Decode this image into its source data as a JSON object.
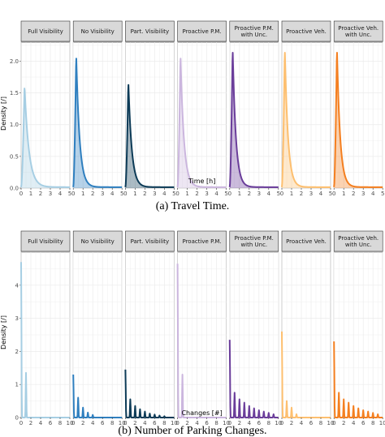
{
  "chart_data": [
    {
      "type": "area",
      "subplot": "a",
      "caption": "(a)   Travel Time.",
      "xlabel": "Time [h]",
      "ylabel": "Density [/]",
      "xlim": [
        0,
        5
      ],
      "ylim": [
        0,
        2.3
      ],
      "xticks": [
        0,
        1,
        2,
        3,
        4,
        5
      ],
      "yticks": [
        0.0,
        0.5,
        1.0,
        1.5,
        2.0
      ],
      "ytick_labels": [
        "0.0",
        "0.5",
        "1.0",
        "1.5",
        "2.0"
      ],
      "grid": true,
      "panels": [
        {
          "label": "Full Visibility",
          "color": "#a6cee3",
          "peak_x": 0.35,
          "peak": 1.6,
          "decay": 0.45
        },
        {
          "label": "No Visibility",
          "color": "#2f7fbf",
          "peak_x": 0.3,
          "peak": 2.1,
          "decay": 0.35
        },
        {
          "label": "Part. Visibility",
          "color": "#0d3b57",
          "peak_x": 0.3,
          "peak": 1.67,
          "decay": 0.35
        },
        {
          "label": "Proactive P.M.",
          "color": "#cbb6de",
          "peak_x": 0.3,
          "peak": 2.1,
          "decay": 0.35
        },
        {
          "label": "Proactive P.M. with Unc.",
          "color": "#6a3d9a",
          "peak_x": 0.3,
          "peak": 2.2,
          "decay": 0.33
        },
        {
          "label": "Proactive Veh.",
          "color": "#fdbf6f",
          "peak_x": 0.3,
          "peak": 2.2,
          "decay": 0.33
        },
        {
          "label": "Proactive Veh. with Unc.",
          "color": "#f47f20",
          "peak_x": 0.3,
          "peak": 2.2,
          "decay": 0.33
        }
      ]
    },
    {
      "type": "area",
      "subplot": "b",
      "caption": "(b)   Number of Parking Changes.",
      "xlabel": "Changes [#]",
      "ylabel": "Density [/]",
      "xlim": [
        0,
        10
      ],
      "ylim": [
        0,
        5
      ],
      "xticks": [
        0,
        2,
        4,
        6,
        8,
        10
      ],
      "yticks": [
        0,
        1,
        2,
        3,
        4
      ],
      "ytick_labels": [
        "0",
        "1",
        "2",
        "3",
        "4"
      ],
      "grid": true,
      "panels": [
        {
          "label": "Full Visibility",
          "color": "#a6cee3",
          "spikes": [
            [
              0,
              4.7
            ],
            [
              1,
              1.35
            ]
          ]
        },
        {
          "label": "No Visibility",
          "color": "#2f7fbf",
          "spikes": [
            [
              0,
              1.3
            ],
            [
              1,
              0.6
            ],
            [
              2,
              0.3
            ],
            [
              3,
              0.15
            ],
            [
              4,
              0.08
            ]
          ]
        },
        {
          "label": "Part. Visibility",
          "color": "#0d3b57",
          "spikes": [
            [
              0,
              1.45
            ],
            [
              1,
              0.55
            ],
            [
              2,
              0.35
            ],
            [
              3,
              0.25
            ],
            [
              4,
              0.18
            ],
            [
              5,
              0.12
            ],
            [
              6,
              0.09
            ],
            [
              7,
              0.06
            ],
            [
              8,
              0.04
            ]
          ]
        },
        {
          "label": "Proactive P.M.",
          "color": "#cbb6de",
          "spikes": [
            [
              0,
              4.65
            ],
            [
              1,
              1.3
            ]
          ]
        },
        {
          "label": "Proactive P.M. with Unc.",
          "color": "#6a3d9a",
          "spikes": [
            [
              0,
              2.35
            ],
            [
              1,
              0.75
            ],
            [
              2,
              0.55
            ],
            [
              3,
              0.45
            ],
            [
              4,
              0.35
            ],
            [
              5,
              0.28
            ],
            [
              6,
              0.22
            ],
            [
              7,
              0.18
            ],
            [
              8,
              0.14
            ],
            [
              9,
              0.1
            ]
          ]
        },
        {
          "label": "Proactive Veh.",
          "color": "#fdbf6f",
          "spikes": [
            [
              0,
              2.6
            ],
            [
              1,
              0.5
            ],
            [
              2,
              0.3
            ],
            [
              3,
              0.1
            ]
          ]
        },
        {
          "label": "Proactive Veh. with Unc.",
          "color": "#f47f20",
          "spikes": [
            [
              0,
              2.3
            ],
            [
              1,
              0.75
            ],
            [
              2,
              0.55
            ],
            [
              3,
              0.45
            ],
            [
              4,
              0.35
            ],
            [
              5,
              0.28
            ],
            [
              6,
              0.22
            ],
            [
              7,
              0.18
            ],
            [
              8,
              0.14
            ],
            [
              9,
              0.1
            ]
          ]
        }
      ]
    }
  ]
}
